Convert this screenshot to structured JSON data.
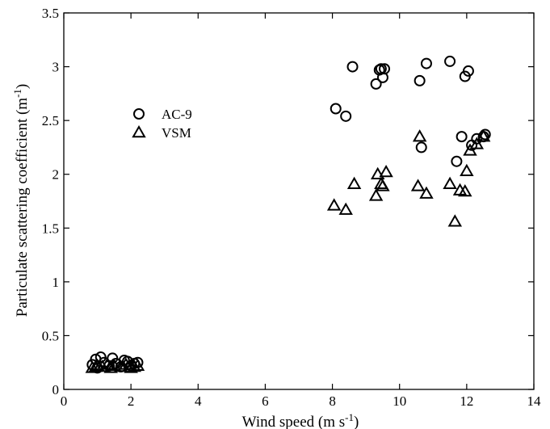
{
  "chart_data": {
    "type": "scatter",
    "title": "",
    "xlabel": "Wind speed (m s",
    "xlabel_sup": "-1",
    "xlabel_tail": ")",
    "ylabel": "Particulate scattering coefficient (m",
    "ylabel_sup": "-1",
    "ylabel_tail": ")",
    "xlim": [
      0,
      14
    ],
    "ylim": [
      0,
      3.5
    ],
    "xticks": [
      "0",
      "2",
      "4",
      "6",
      "8",
      "10",
      "12",
      "14"
    ],
    "yticks": [
      "0",
      "0.5",
      "1",
      "1.5",
      "2",
      "2.5",
      "3",
      "3.5"
    ],
    "grid": false,
    "legend_position": "upper-left",
    "series": [
      {
        "name": "AC-9",
        "marker": "circle",
        "color": "#000000",
        "points": [
          [
            0.85,
            0.23
          ],
          [
            0.95,
            0.28
          ],
          [
            1.0,
            0.2
          ],
          [
            1.1,
            0.3
          ],
          [
            1.2,
            0.25
          ],
          [
            1.35,
            0.22
          ],
          [
            1.45,
            0.29
          ],
          [
            1.55,
            0.24
          ],
          [
            1.7,
            0.21
          ],
          [
            1.8,
            0.27
          ],
          [
            1.9,
            0.26
          ],
          [
            2.0,
            0.22
          ],
          [
            2.1,
            0.24
          ],
          [
            2.2,
            0.25
          ],
          [
            8.1,
            2.61
          ],
          [
            8.4,
            2.54
          ],
          [
            8.6,
            3.0
          ],
          [
            9.3,
            2.84
          ],
          [
            9.4,
            2.97
          ],
          [
            9.45,
            2.98
          ],
          [
            9.5,
            2.9
          ],
          [
            9.55,
            2.98
          ],
          [
            10.6,
            2.87
          ],
          [
            10.65,
            2.25
          ],
          [
            10.8,
            3.03
          ],
          [
            11.5,
            3.05
          ],
          [
            11.7,
            2.12
          ],
          [
            11.85,
            2.35
          ],
          [
            11.95,
            2.91
          ],
          [
            12.05,
            2.96
          ],
          [
            12.15,
            2.27
          ],
          [
            12.3,
            2.33
          ],
          [
            12.5,
            2.35
          ],
          [
            12.55,
            2.37
          ]
        ]
      },
      {
        "name": "VSM",
        "marker": "triangle",
        "color": "#000000",
        "points": [
          [
            0.85,
            0.2
          ],
          [
            0.95,
            0.21
          ],
          [
            1.0,
            0.22
          ],
          [
            1.15,
            0.21
          ],
          [
            1.3,
            0.23
          ],
          [
            1.4,
            0.2
          ],
          [
            1.5,
            0.22
          ],
          [
            1.7,
            0.21
          ],
          [
            1.85,
            0.23
          ],
          [
            2.0,
            0.2
          ],
          [
            2.1,
            0.21
          ],
          [
            2.2,
            0.22
          ],
          [
            8.05,
            1.71
          ],
          [
            8.4,
            1.67
          ],
          [
            8.65,
            1.91
          ],
          [
            9.3,
            1.8
          ],
          [
            9.35,
            2.0
          ],
          [
            9.45,
            1.91
          ],
          [
            9.5,
            1.89
          ],
          [
            9.6,
            2.02
          ],
          [
            10.55,
            1.89
          ],
          [
            10.6,
            2.35
          ],
          [
            10.8,
            1.82
          ],
          [
            11.5,
            1.91
          ],
          [
            11.65,
            1.56
          ],
          [
            11.8,
            1.85
          ],
          [
            11.95,
            1.84
          ],
          [
            12.0,
            2.03
          ],
          [
            12.1,
            2.22
          ],
          [
            12.3,
            2.28
          ],
          [
            12.5,
            2.35
          ]
        ]
      }
    ]
  }
}
